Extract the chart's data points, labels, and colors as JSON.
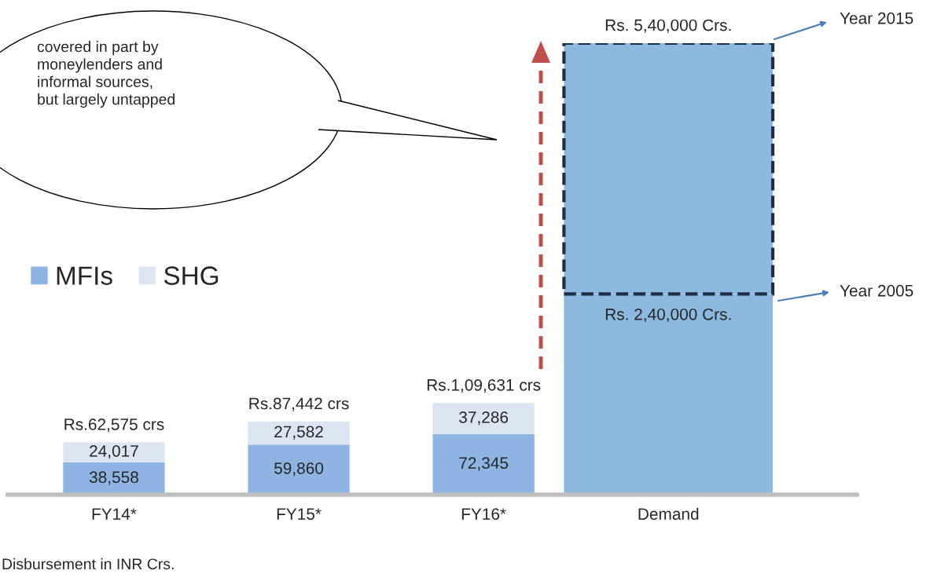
{
  "chart_data": {
    "type": "bar",
    "stacked": true,
    "categories": [
      "FY14*",
      "FY15*",
      "FY16*",
      "Demand"
    ],
    "series": [
      {
        "name": "MFIs",
        "color": "#8eb4e3",
        "values": [
          38558,
          59860,
          72345,
          null
        ],
        "value_labels": [
          "38,558",
          "59,860",
          "72,345",
          null
        ]
      },
      {
        "name": "SHG",
        "color": "#dce6f2",
        "values": [
          24017,
          27582,
          37286,
          null
        ],
        "value_labels": [
          "24,017",
          "27,582",
          "37,286",
          null
        ]
      },
      {
        "color": "#8db9e0",
        "values": [
          null,
          null,
          null,
          240000
        ],
        "value_labels": [
          null,
          null,
          null,
          "Rs. 2,40,000 Crs."
        ]
      },
      {
        "color": "#8db9e0",
        "values": [
          null,
          null,
          null,
          300000
        ],
        "line_style": "dashed"
      }
    ],
    "totals": [
      "Rs.62,575 crs",
      "Rs.87,442 crs",
      "Rs.1,09,631 crs",
      "Rs. 5,40,000 Crs."
    ],
    "annotations": [
      "Year 2015",
      "Year 2005",
      "covered in part by\nmoneylenders and\ninformal sources,\nbut largely untapped",
      "Disbursement in INR Crs."
    ],
    "legend": "left",
    "grid": false
  }
}
